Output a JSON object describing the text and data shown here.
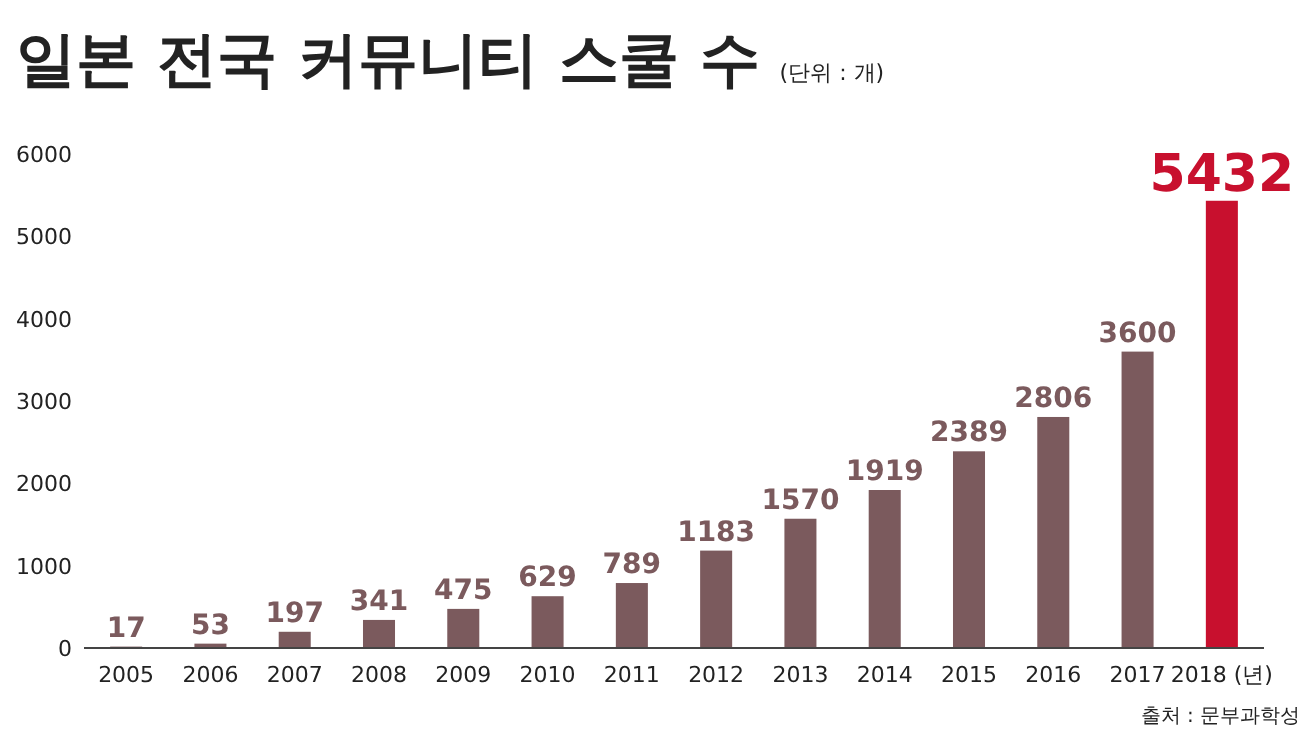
{
  "chart_data": {
    "type": "bar",
    "title": "일본 전국 커뮤니티 스쿨 수",
    "subtitle": "(단위 : 개)",
    "categories": [
      "2005",
      "2006",
      "2007",
      "2008",
      "2009",
      "2010",
      "2011",
      "2012",
      "2013",
      "2014",
      "2015",
      "2016",
      "2017",
      "2018 (년)"
    ],
    "values": [
      17,
      53,
      197,
      341,
      475,
      629,
      789,
      1183,
      1570,
      1919,
      2389,
      2806,
      3600,
      5432
    ],
    "colors": [
      "#7b5a5d",
      "#7b5a5d",
      "#7b5a5d",
      "#7b5a5d",
      "#7b5a5d",
      "#7b5a5d",
      "#7b5a5d",
      "#7b5a5d",
      "#7b5a5d",
      "#7b5a5d",
      "#7b5a5d",
      "#7b5a5d",
      "#7b5a5d",
      "#c8102e"
    ],
    "ylim": [
      0,
      6000
    ],
    "yticks": [
      0,
      1000,
      2000,
      3000,
      4000,
      5000,
      6000
    ],
    "data_labels": true,
    "annotations": [
      "출처 : 문부과학성"
    ]
  }
}
